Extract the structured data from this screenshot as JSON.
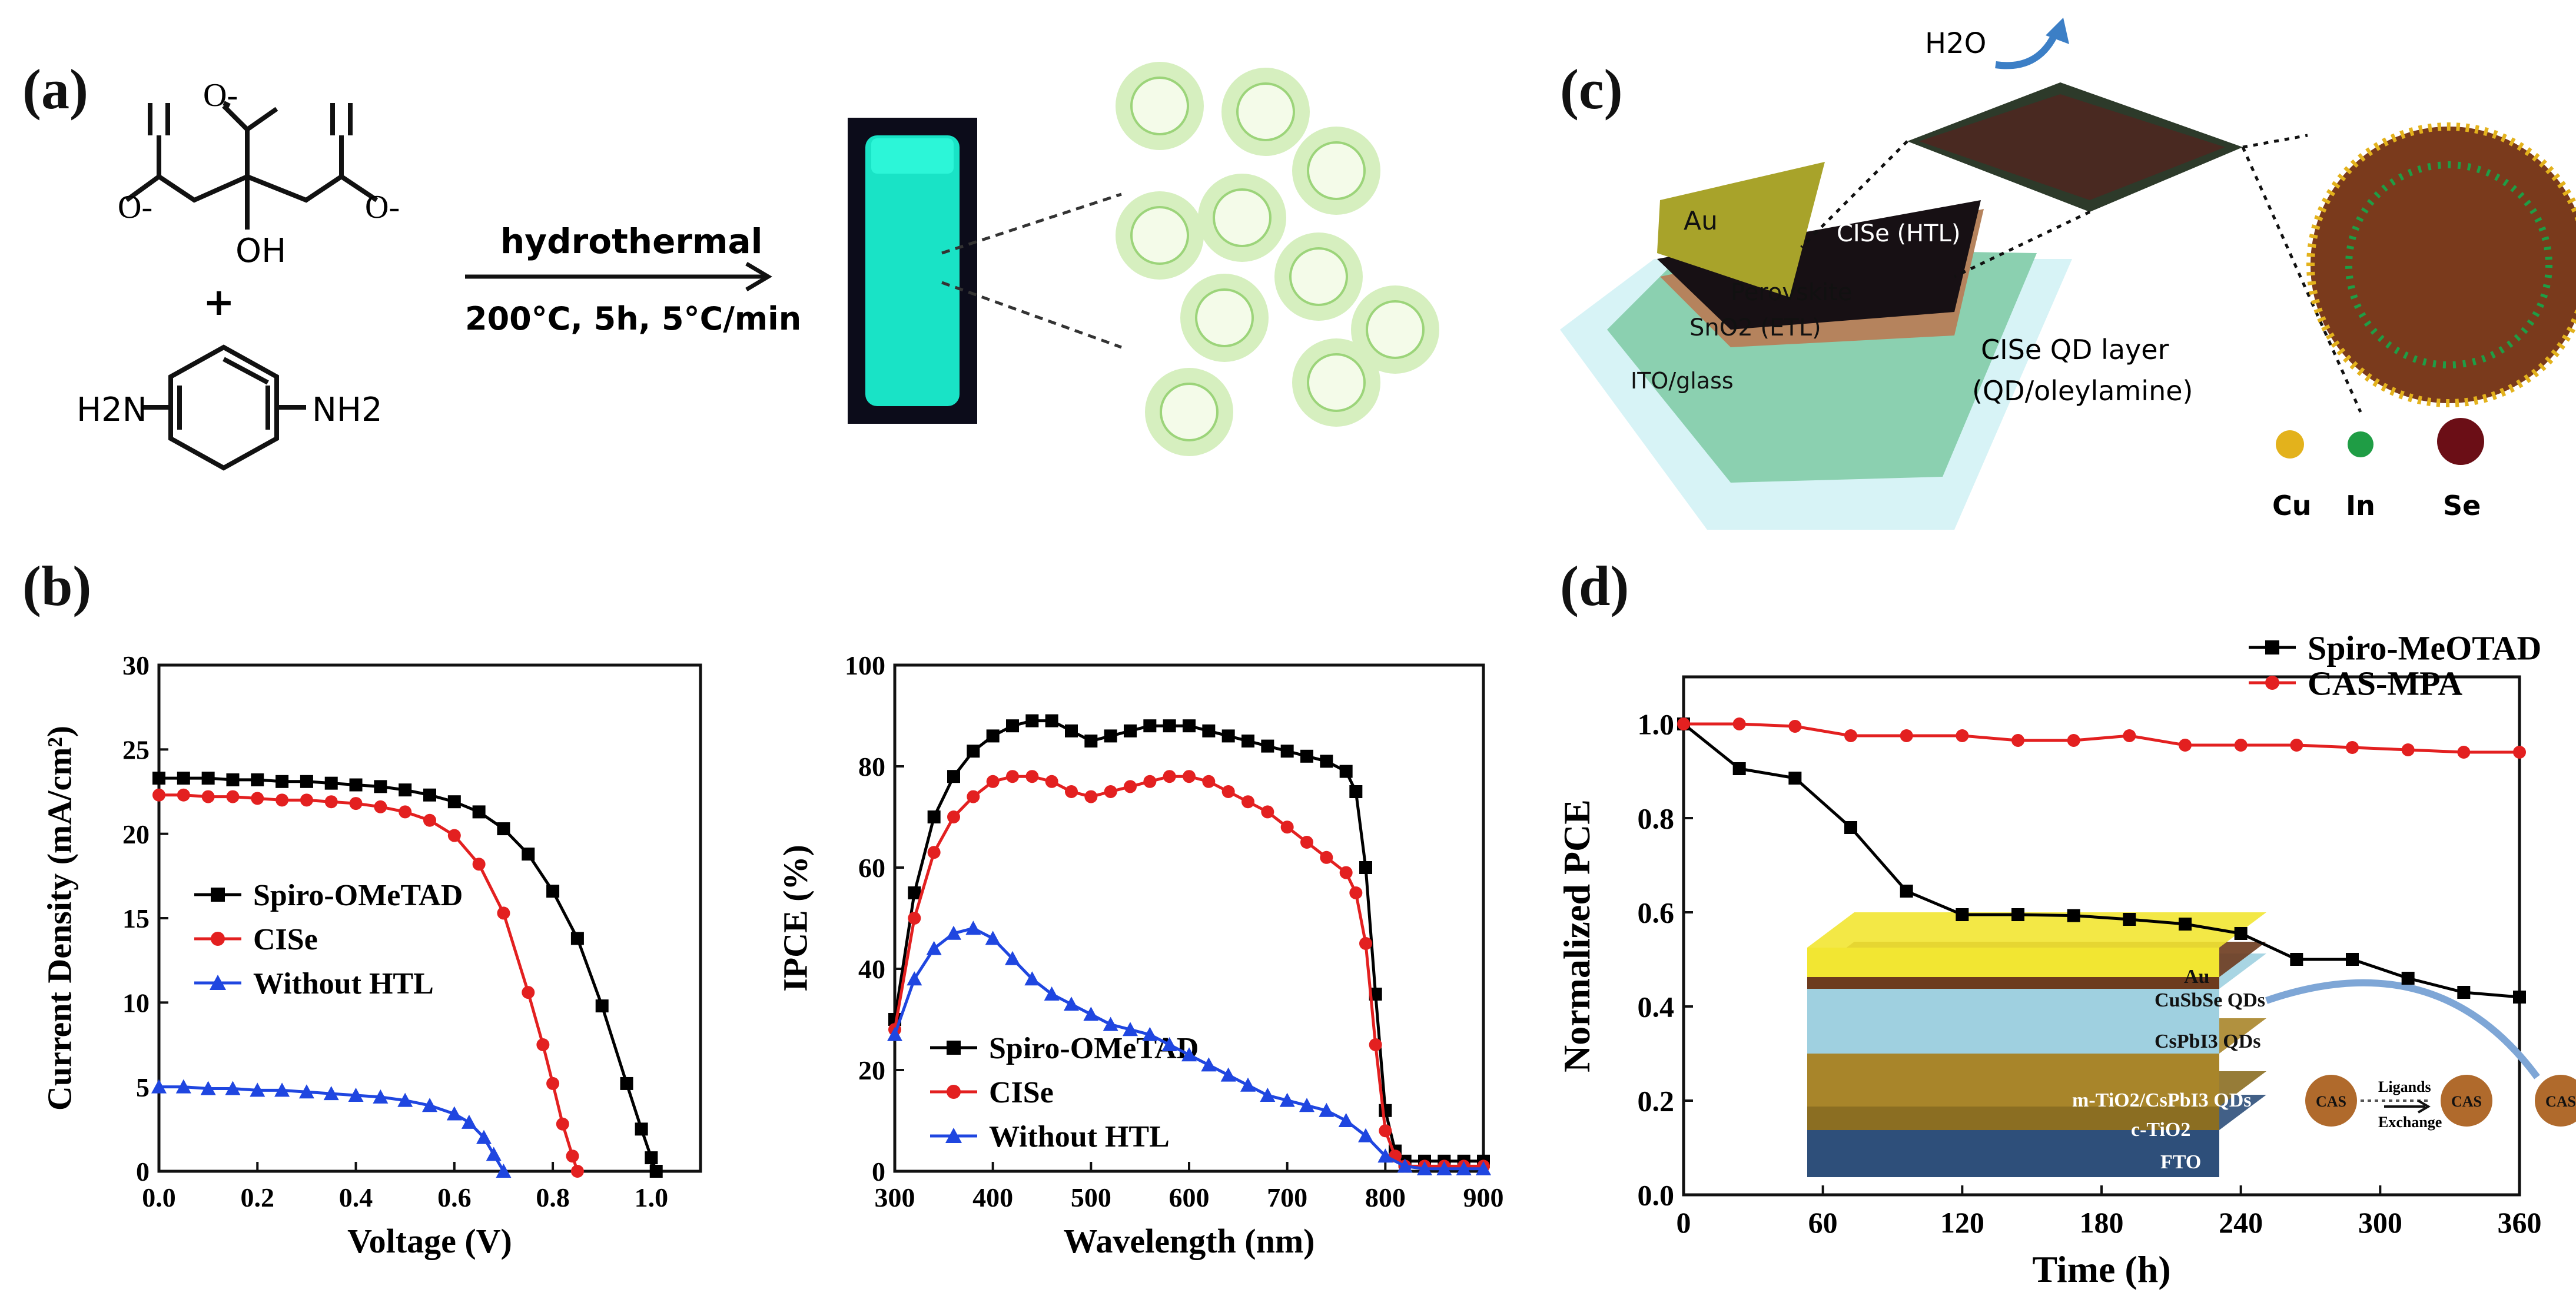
{
  "panel_labels": [
    "(a)",
    "(b)",
    "(c)",
    "(d)"
  ],
  "panel_a": {
    "molecule_charges": [
      "O-",
      "O-",
      "O-"
    ],
    "hydroxyl": "OH",
    "plus": "+",
    "amine_left": "H2N",
    "amine_right": "NH2",
    "arrow_top": "hydrothermal",
    "arrow_bottom": "200°C, 5h, 5°C/min",
    "colors": {
      "vial": "#19e3c6",
      "dot_glow": "#b9e88a"
    }
  },
  "panel_c": {
    "layers": [
      "Au",
      "CISe (HTL)",
      "Perovskite",
      "SnO2 (ETL)",
      "ITO/glass"
    ],
    "water": "H2O",
    "qd_layer_line1": "CISe QD layer",
    "qd_layer_line2": "(QD/oleylamine)",
    "atoms": [
      {
        "label": "Cu",
        "color": "#e3b21c"
      },
      {
        "label": "In",
        "color": "#1f9d45"
      },
      {
        "label": "Se",
        "color": "#6b0e16"
      }
    ]
  },
  "panel_d_inset": {
    "layers": [
      "Au",
      "CuSbSe QDs",
      "CsPbI3 QDs",
      "m-TiO2/CsPbI3 QDs",
      "c-TiO2",
      "FTO"
    ],
    "ligand_top": "Ligands",
    "ligand_bottom": "Exchange",
    "cas": "CAS"
  },
  "chart_data": [
    {
      "id": "jv",
      "type": "line",
      "title": "",
      "xlabel": "Voltage (V)",
      "ylabel": "Current Density (mA/cm²)",
      "xlim": [
        0,
        1.1
      ],
      "ylim": [
        0,
        30
      ],
      "xticks": [
        "0.0",
        "0.2",
        "0.4",
        "0.6",
        "0.8",
        "1.0"
      ],
      "yticks": [
        "0",
        "5",
        "10",
        "15",
        "20",
        "25",
        "30"
      ],
      "legend_position": "center-left",
      "series": [
        {
          "name": "Spiro-OMeTAD",
          "color": "#000000",
          "marker": "square",
          "x": [
            0,
            0.05,
            0.1,
            0.15,
            0.2,
            0.25,
            0.3,
            0.35,
            0.4,
            0.45,
            0.5,
            0.55,
            0.6,
            0.65,
            0.7,
            0.75,
            0.8,
            0.85,
            0.9,
            0.95,
            0.98,
            1.0,
            1.01
          ],
          "y": [
            23.3,
            23.3,
            23.3,
            23.2,
            23.2,
            23.1,
            23.1,
            23.0,
            22.9,
            22.8,
            22.6,
            22.3,
            21.9,
            21.3,
            20.3,
            18.8,
            16.6,
            13.8,
            9.8,
            5.2,
            2.5,
            0.8,
            0
          ]
        },
        {
          "name": "CISe",
          "color": "#e32020",
          "marker": "circle",
          "x": [
            0,
            0.05,
            0.1,
            0.15,
            0.2,
            0.25,
            0.3,
            0.35,
            0.4,
            0.45,
            0.5,
            0.55,
            0.6,
            0.65,
            0.7,
            0.75,
            0.78,
            0.8,
            0.82,
            0.84,
            0.85
          ],
          "y": [
            22.3,
            22.3,
            22.2,
            22.2,
            22.1,
            22.0,
            22.0,
            21.9,
            21.8,
            21.6,
            21.3,
            20.8,
            19.9,
            18.2,
            15.3,
            10.6,
            7.5,
            5.2,
            2.8,
            0.9,
            0
          ]
        },
        {
          "name": "Without HTL",
          "color": "#1f46e0",
          "marker": "triangle",
          "x": [
            0,
            0.05,
            0.1,
            0.15,
            0.2,
            0.25,
            0.3,
            0.35,
            0.4,
            0.45,
            0.5,
            0.55,
            0.6,
            0.63,
            0.66,
            0.68,
            0.7
          ],
          "y": [
            5.0,
            5.0,
            4.9,
            4.9,
            4.8,
            4.8,
            4.7,
            4.6,
            4.5,
            4.4,
            4.2,
            3.9,
            3.4,
            2.9,
            2.0,
            1.0,
            0
          ]
        }
      ]
    },
    {
      "id": "ipce",
      "type": "line",
      "title": "",
      "xlabel": "Wavelength (nm)",
      "ylabel": "IPCE (%)",
      "xlim": [
        300,
        900
      ],
      "ylim": [
        0,
        100
      ],
      "xticks": [
        "300",
        "400",
        "500",
        "600",
        "700",
        "800",
        "900"
      ],
      "yticks": [
        "0",
        "20",
        "40",
        "60",
        "80",
        "100"
      ],
      "legend_position": "bottom-left",
      "series": [
        {
          "name": "Spiro-OMeTAD",
          "color": "#000000",
          "marker": "square",
          "x": [
            300,
            320,
            340,
            360,
            380,
            400,
            420,
            440,
            460,
            480,
            500,
            520,
            540,
            560,
            580,
            600,
            620,
            640,
            660,
            680,
            700,
            720,
            740,
            760,
            770,
            780,
            790,
            800,
            810,
            820,
            840,
            860,
            880,
            900
          ],
          "y": [
            30,
            55,
            70,
            78,
            83,
            86,
            88,
            89,
            89,
            87,
            85,
            86,
            87,
            88,
            88,
            88,
            87,
            86,
            85,
            84,
            83,
            82,
            81,
            79,
            75,
            60,
            35,
            12,
            4,
            2,
            2,
            2,
            2,
            2
          ]
        },
        {
          "name": "CISe",
          "color": "#e32020",
          "marker": "circle",
          "x": [
            300,
            320,
            340,
            360,
            380,
            400,
            420,
            440,
            460,
            480,
            500,
            520,
            540,
            560,
            580,
            600,
            620,
            640,
            660,
            680,
            700,
            720,
            740,
            760,
            770,
            780,
            790,
            800,
            810,
            820,
            840,
            860,
            880,
            900
          ],
          "y": [
            28,
            50,
            63,
            70,
            74,
            77,
            78,
            78,
            77,
            75,
            74,
            75,
            76,
            77,
            78,
            78,
            77,
            75,
            73,
            71,
            68,
            65,
            62,
            59,
            55,
            45,
            25,
            8,
            3,
            1,
            1,
            1,
            1,
            1
          ]
        },
        {
          "name": "Without HTL",
          "color": "#1f46e0",
          "marker": "triangle",
          "x": [
            300,
            320,
            340,
            360,
            380,
            400,
            420,
            440,
            460,
            480,
            500,
            520,
            540,
            560,
            580,
            600,
            620,
            640,
            660,
            680,
            700,
            720,
            740,
            760,
            780,
            800,
            820,
            840,
            860,
            880,
            900
          ],
          "y": [
            27,
            38,
            44,
            47,
            48,
            46,
            42,
            38,
            35,
            33,
            31,
            29,
            28,
            27,
            25,
            23,
            21,
            19,
            17,
            15,
            14,
            13,
            12,
            10,
            7,
            3,
            1,
            0.5,
            0.5,
            0.5,
            0.5
          ]
        }
      ]
    },
    {
      "id": "stability",
      "type": "line",
      "title": "",
      "xlabel": "Time (h)",
      "ylabel": "Normalized PCE",
      "xlim": [
        0,
        360
      ],
      "ylim": [
        0,
        1.1
      ],
      "xticks": [
        "0",
        "60",
        "120",
        "180",
        "240",
        "300",
        "360"
      ],
      "yticks": [
        "0.0",
        "0.2",
        "0.4",
        "0.6",
        "0.8",
        "1.0"
      ],
      "legend_position": "top-right",
      "series": [
        {
          "name": "Spiro-MeOTAD",
          "color": "#000000",
          "marker": "square",
          "x": [
            0,
            24,
            48,
            72,
            96,
            120,
            144,
            168,
            192,
            216,
            240,
            264,
            288,
            312,
            336,
            360
          ],
          "y": [
            1.0,
            0.905,
            0.885,
            0.78,
            0.645,
            0.595,
            0.595,
            0.593,
            0.585,
            0.575,
            0.555,
            0.5,
            0.5,
            0.46,
            0.43,
            0.42
          ]
        },
        {
          "name": "CAS-MPA",
          "color": "#e32020",
          "marker": "circle",
          "x": [
            0,
            24,
            48,
            72,
            96,
            120,
            144,
            168,
            192,
            216,
            240,
            264,
            288,
            312,
            336,
            360
          ],
          "y": [
            1.0,
            1.0,
            0.995,
            0.975,
            0.975,
            0.975,
            0.965,
            0.965,
            0.975,
            0.955,
            0.955,
            0.955,
            0.95,
            0.945,
            0.94,
            0.94
          ]
        }
      ]
    }
  ]
}
